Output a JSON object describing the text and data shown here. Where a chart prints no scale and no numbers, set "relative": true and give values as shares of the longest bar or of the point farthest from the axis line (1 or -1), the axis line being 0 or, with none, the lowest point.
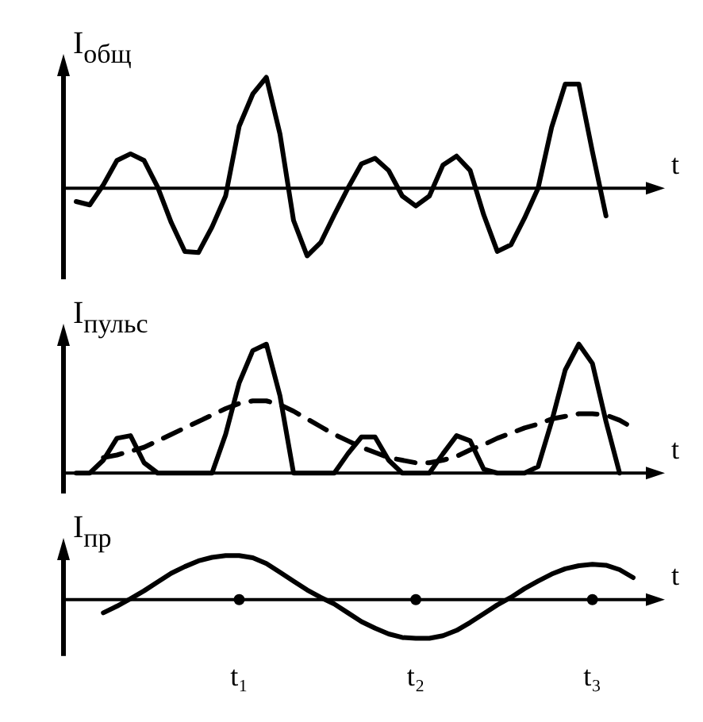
{
  "chart_data": [
    {
      "type": "line",
      "relative": true,
      "ylabel": "I$_{общ}$",
      "xlabel": "t",
      "tick_labels": false,
      "categories": [
        null,
        null,
        null,
        null,
        null,
        null,
        null,
        null,
        null,
        null,
        null,
        null,
        null,
        null,
        null,
        null,
        null,
        null,
        null,
        null,
        null,
        null,
        null,
        null,
        null,
        null,
        null,
        null,
        null,
        null,
        null,
        null,
        null,
        null,
        null,
        null,
        null,
        null,
        null,
        null,
        null,
        null
      ],
      "series": [
        {
          "color": "#000000",
          "values": [
            -0.12,
            -0.15,
            0.03,
            0.25,
            0.31,
            0.25,
            0.01,
            -0.31,
            -0.57,
            -0.58,
            -0.35,
            -0.07,
            0.56,
            0.85,
            1,
            0.49,
            -0.29,
            -0.61,
            -0.49,
            -0.24,
            0,
            0.22,
            0.27,
            0.16,
            -0.07,
            -0.16,
            -0.07,
            0.21,
            0.29,
            0.16,
            -0.24,
            -0.57,
            -0.51,
            -0.27,
            0,
            0.55,
            0.94,
            0.94,
            0.33,
            -0.25,
            null,
            null
          ]
        }
      ]
    },
    {
      "type": "line",
      "relative": true,
      "ylabel": "I$_{пульс}$",
      "xlabel": "t",
      "tick_labels": false,
      "categories": [
        null,
        null,
        null,
        null,
        null,
        null,
        null,
        null,
        null,
        null,
        null,
        null,
        null,
        null,
        null,
        null,
        null,
        null,
        null,
        null,
        null,
        null,
        null,
        null,
        null,
        null,
        null,
        null,
        null,
        null,
        null,
        null,
        null,
        null,
        null,
        null,
        null,
        null,
        null,
        null,
        null,
        null
      ],
      "series": [
        {
          "color": "#000000",
          "values": [
            0,
            0,
            0.1,
            0.27,
            0.29,
            0.08,
            0,
            0,
            0,
            0,
            0,
            0.3,
            0.7,
            0.95,
            1,
            0.6,
            0,
            0,
            0,
            0,
            0.15,
            0.28,
            0.28,
            0.1,
            0,
            0,
            0,
            0.15,
            0.29,
            0.25,
            0.03,
            0,
            0,
            0,
            0.05,
            0.4,
            0.8,
            1,
            0.85,
            0.4,
            0,
            null
          ]
        },
        {
          "color": "#000000",
          "line_style": "dashed",
          "values": [
            null,
            null,
            0.12,
            0.14,
            0.17,
            0.2,
            0.25,
            0.3,
            0.35,
            0.4,
            0.45,
            0.5,
            0.54,
            0.56,
            0.56,
            0.53,
            0.48,
            0.42,
            0.36,
            0.3,
            0.25,
            0.2,
            0.16,
            0.12,
            0.1,
            0.08,
            0.08,
            0.1,
            0.13,
            0.18,
            0.22,
            0.27,
            0.31,
            0.35,
            0.38,
            0.42,
            0.44,
            0.46,
            0.46,
            0.45,
            0.41,
            0.35
          ]
        }
      ]
    },
    {
      "type": "line",
      "relative": true,
      "ylabel": "I$_{пр}$",
      "xlabel": "t",
      "tick_labels": "x",
      "categories": [
        null,
        null,
        null,
        null,
        null,
        null,
        null,
        null,
        null,
        null,
        null,
        null,
        "t₁",
        null,
        null,
        null,
        null,
        null,
        null,
        null,
        null,
        null,
        null,
        null,
        null,
        "t₂",
        null,
        null,
        null,
        null,
        null,
        null,
        null,
        null,
        null,
        null,
        null,
        null,
        "t₃",
        null,
        null,
        null
      ],
      "series": [
        {
          "color": "#000000",
          "values": [
            null,
            null,
            -0.3,
            -0.15,
            0.02,
            0.2,
            0.4,
            0.6,
            0.75,
            0.88,
            0.96,
            1,
            1,
            0.95,
            0.82,
            0.62,
            0.42,
            0.22,
            0.05,
            -0.1,
            -0.3,
            -0.5,
            -0.65,
            -0.78,
            -0.86,
            -0.88,
            -0.88,
            -0.82,
            -0.7,
            -0.52,
            -0.32,
            -0.12,
            0.05,
            0.25,
            0.42,
            0.58,
            0.7,
            0.77,
            0.8,
            0.78,
            0.68,
            0.5
          ]
        }
      ]
    }
  ]
}
